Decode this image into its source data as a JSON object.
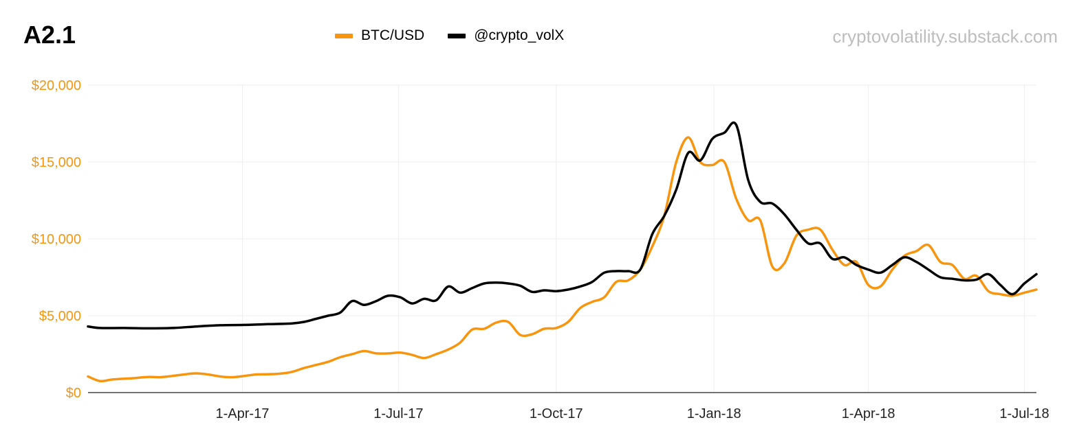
{
  "header": {
    "title": "A2.1",
    "watermark": "cryptovolatility.substack.com"
  },
  "colors": {
    "btc": "#f7950f",
    "vol": "#000000",
    "grid": "#eeeeee",
    "axis": "#444444",
    "yaxis_text": "#f7950f"
  },
  "chart_data": {
    "type": "line",
    "title": "A2.1",
    "xlabel": "",
    "ylabel": "",
    "x_range": [
      "2017-01-01",
      "2018-07-08"
    ],
    "ylim": [
      0,
      20000
    ],
    "y_ticks": [
      0,
      5000,
      10000,
      15000,
      20000
    ],
    "y_tick_labels": [
      "$0",
      "$5,000",
      "$10,000",
      "$15,000",
      "$20,000"
    ],
    "x_ticks": [
      "2017-04-01",
      "2017-07-01",
      "2017-10-01",
      "2018-01-01",
      "2018-04-01",
      "2018-07-01"
    ],
    "x_tick_labels": [
      "1-Apr-17",
      "1-Jul-17",
      "1-Oct-17",
      "1-Jan-18",
      "1-Apr-18",
      "1-Jul-18"
    ],
    "grid": true,
    "legend_position": "top-center",
    "series": [
      {
        "name": "BTC/USD",
        "color": "#f7950f",
        "points": [
          [
            "2017-01-01",
            1050
          ],
          [
            "2017-01-08",
            750
          ],
          [
            "2017-01-15",
            850
          ],
          [
            "2017-01-22",
            900
          ],
          [
            "2017-01-29",
            950
          ],
          [
            "2017-02-05",
            1020
          ],
          [
            "2017-02-12",
            1000
          ],
          [
            "2017-02-19",
            1080
          ],
          [
            "2017-02-26",
            1180
          ],
          [
            "2017-03-05",
            1250
          ],
          [
            "2017-03-12",
            1180
          ],
          [
            "2017-03-19",
            1050
          ],
          [
            "2017-03-26",
            1000
          ],
          [
            "2017-04-02",
            1080
          ],
          [
            "2017-04-09",
            1180
          ],
          [
            "2017-04-16",
            1190
          ],
          [
            "2017-04-23",
            1230
          ],
          [
            "2017-04-30",
            1350
          ],
          [
            "2017-05-07",
            1600
          ],
          [
            "2017-05-14",
            1800
          ],
          [
            "2017-05-21",
            2000
          ],
          [
            "2017-05-28",
            2300
          ],
          [
            "2017-06-04",
            2500
          ],
          [
            "2017-06-11",
            2700
          ],
          [
            "2017-06-18",
            2550
          ],
          [
            "2017-06-25",
            2550
          ],
          [
            "2017-07-02",
            2600
          ],
          [
            "2017-07-09",
            2450
          ],
          [
            "2017-07-16",
            2250
          ],
          [
            "2017-07-23",
            2500
          ],
          [
            "2017-07-30",
            2800
          ],
          [
            "2017-08-06",
            3250
          ],
          [
            "2017-08-13",
            4100
          ],
          [
            "2017-08-20",
            4150
          ],
          [
            "2017-08-27",
            4550
          ],
          [
            "2017-09-03",
            4600
          ],
          [
            "2017-09-10",
            3750
          ],
          [
            "2017-09-17",
            3800
          ],
          [
            "2017-09-24",
            4150
          ],
          [
            "2017-10-01",
            4200
          ],
          [
            "2017-10-08",
            4600
          ],
          [
            "2017-10-15",
            5500
          ],
          [
            "2017-10-22",
            5900
          ],
          [
            "2017-10-29",
            6200
          ],
          [
            "2017-11-05",
            7200
          ],
          [
            "2017-11-12",
            7300
          ],
          [
            "2017-11-19",
            8000
          ],
          [
            "2017-11-26",
            9500
          ],
          [
            "2017-12-03",
            11500
          ],
          [
            "2017-12-10",
            15000
          ],
          [
            "2017-12-17",
            16600
          ],
          [
            "2017-12-24",
            15000
          ],
          [
            "2017-12-31",
            14800
          ],
          [
            "2018-01-07",
            15000
          ],
          [
            "2018-01-14",
            12600
          ],
          [
            "2018-01-21",
            11200
          ],
          [
            "2018-01-28",
            11200
          ],
          [
            "2018-02-04",
            8200
          ],
          [
            "2018-02-11",
            8400
          ],
          [
            "2018-02-18",
            10200
          ],
          [
            "2018-02-25",
            10600
          ],
          [
            "2018-03-04",
            10600
          ],
          [
            "2018-03-11",
            9300
          ],
          [
            "2018-03-18",
            8300
          ],
          [
            "2018-03-25",
            8500
          ],
          [
            "2018-04-01",
            7000
          ],
          [
            "2018-04-08",
            6900
          ],
          [
            "2018-04-15",
            8000
          ],
          [
            "2018-04-22",
            8900
          ],
          [
            "2018-04-29",
            9200
          ],
          [
            "2018-05-06",
            9600
          ],
          [
            "2018-05-13",
            8500
          ],
          [
            "2018-05-20",
            8300
          ],
          [
            "2018-05-27",
            7400
          ],
          [
            "2018-06-03",
            7600
          ],
          [
            "2018-06-10",
            6600
          ],
          [
            "2018-06-17",
            6400
          ],
          [
            "2018-06-24",
            6300
          ],
          [
            "2018-07-01",
            6500
          ],
          [
            "2018-07-08",
            6700
          ]
        ]
      },
      {
        "name": "@crypto_volX",
        "color": "#000000",
        "points": [
          [
            "2017-01-01",
            4300
          ],
          [
            "2017-01-08",
            4200
          ],
          [
            "2017-01-22",
            4200
          ],
          [
            "2017-02-05",
            4180
          ],
          [
            "2017-02-19",
            4200
          ],
          [
            "2017-03-05",
            4300
          ],
          [
            "2017-03-19",
            4380
          ],
          [
            "2017-04-02",
            4400
          ],
          [
            "2017-04-16",
            4450
          ],
          [
            "2017-04-30",
            4500
          ],
          [
            "2017-05-07",
            4600
          ],
          [
            "2017-05-14",
            4800
          ],
          [
            "2017-05-21",
            5000
          ],
          [
            "2017-05-28",
            5200
          ],
          [
            "2017-06-04",
            5950
          ],
          [
            "2017-06-11",
            5700
          ],
          [
            "2017-06-18",
            5950
          ],
          [
            "2017-06-25",
            6300
          ],
          [
            "2017-07-02",
            6200
          ],
          [
            "2017-07-09",
            5800
          ],
          [
            "2017-07-16",
            6100
          ],
          [
            "2017-07-23",
            6000
          ],
          [
            "2017-07-30",
            6900
          ],
          [
            "2017-08-06",
            6500
          ],
          [
            "2017-08-13",
            6800
          ],
          [
            "2017-08-20",
            7100
          ],
          [
            "2017-08-27",
            7150
          ],
          [
            "2017-09-03",
            7100
          ],
          [
            "2017-09-10",
            6950
          ],
          [
            "2017-09-17",
            6550
          ],
          [
            "2017-09-24",
            6650
          ],
          [
            "2017-10-01",
            6600
          ],
          [
            "2017-10-08",
            6700
          ],
          [
            "2017-10-15",
            6900
          ],
          [
            "2017-10-22",
            7200
          ],
          [
            "2017-10-29",
            7800
          ],
          [
            "2017-11-05",
            7900
          ],
          [
            "2017-11-12",
            7900
          ],
          [
            "2017-11-19",
            8000
          ],
          [
            "2017-11-26",
            10300
          ],
          [
            "2017-12-03",
            11500
          ],
          [
            "2017-12-10",
            13200
          ],
          [
            "2017-12-17",
            15600
          ],
          [
            "2017-12-24",
            15100
          ],
          [
            "2017-12-31",
            16500
          ],
          [
            "2018-01-07",
            16900
          ],
          [
            "2018-01-14",
            17400
          ],
          [
            "2018-01-21",
            13800
          ],
          [
            "2018-01-28",
            12400
          ],
          [
            "2018-02-04",
            12300
          ],
          [
            "2018-02-11",
            11600
          ],
          [
            "2018-02-18",
            10600
          ],
          [
            "2018-02-25",
            9700
          ],
          [
            "2018-03-04",
            9700
          ],
          [
            "2018-03-11",
            8700
          ],
          [
            "2018-03-18",
            8800
          ],
          [
            "2018-03-25",
            8300
          ],
          [
            "2018-04-01",
            8000
          ],
          [
            "2018-04-08",
            7800
          ],
          [
            "2018-04-15",
            8300
          ],
          [
            "2018-04-22",
            8800
          ],
          [
            "2018-04-29",
            8500
          ],
          [
            "2018-05-06",
            8000
          ],
          [
            "2018-05-13",
            7500
          ],
          [
            "2018-05-20",
            7400
          ],
          [
            "2018-05-27",
            7300
          ],
          [
            "2018-06-03",
            7350
          ],
          [
            "2018-06-10",
            7700
          ],
          [
            "2018-06-17",
            7000
          ],
          [
            "2018-06-24",
            6400
          ],
          [
            "2018-07-01",
            7100
          ],
          [
            "2018-07-08",
            7700
          ]
        ]
      }
    ]
  }
}
